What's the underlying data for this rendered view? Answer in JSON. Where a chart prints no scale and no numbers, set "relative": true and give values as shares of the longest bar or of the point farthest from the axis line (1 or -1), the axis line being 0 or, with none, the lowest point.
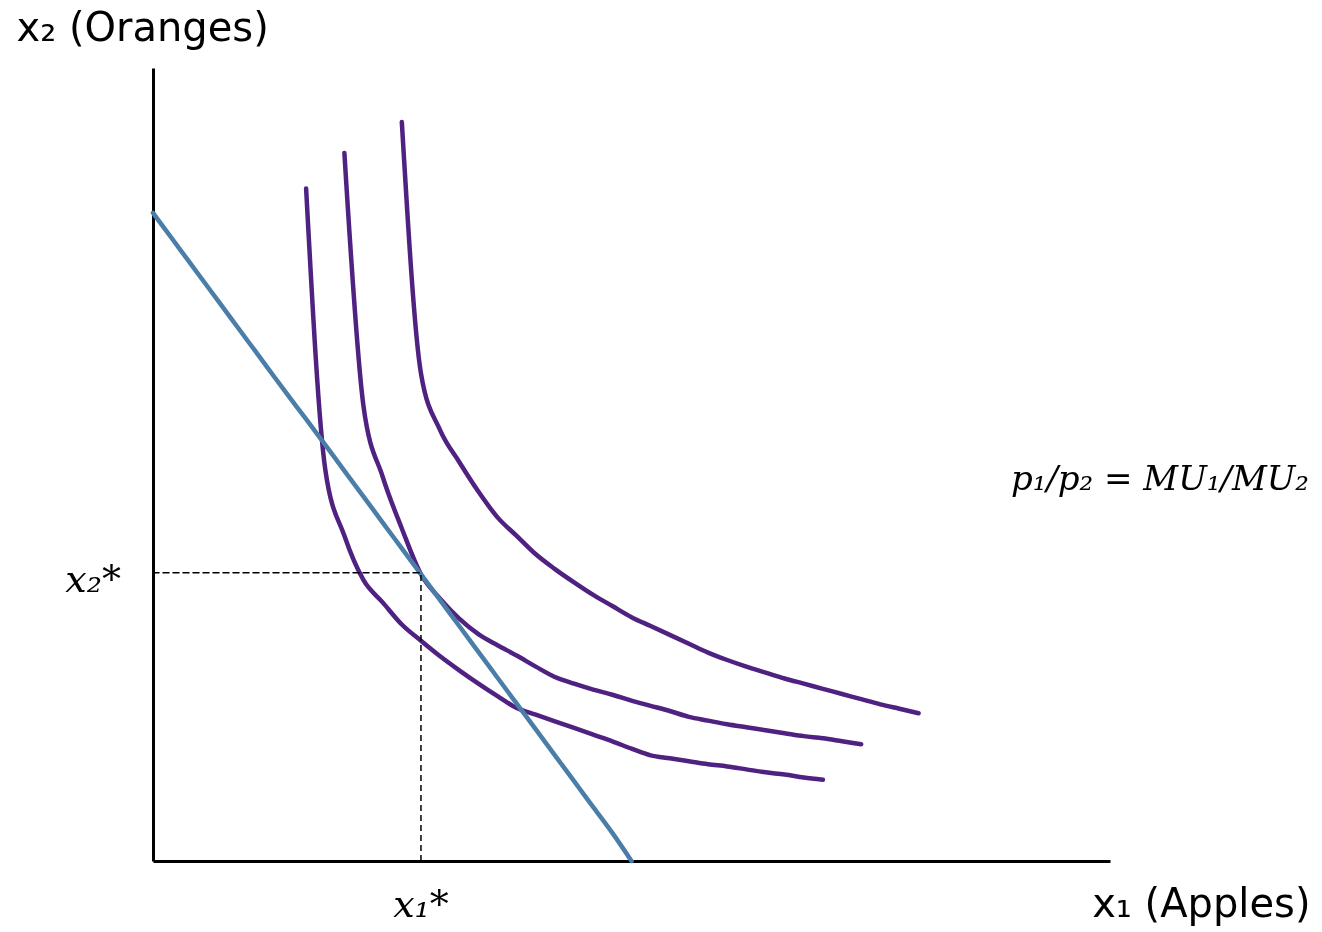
{
  "chart_data": {
    "type": "line",
    "relative": true,
    "xlabel": "x₁ (Apples)",
    "ylabel": "x₂ (Oranges)",
    "categories": [
      null,
      null,
      null,
      null,
      null,
      null,
      null,
      null,
      null,
      null,
      null,
      null,
      null,
      null,
      null,
      null,
      null,
      null,
      null,
      null,
      null,
      null,
      null,
      null,
      null,
      null,
      null,
      null,
      null,
      null,
      null,
      null,
      null,
      null,
      null,
      null,
      null,
      null,
      null,
      null,
      null,
      null,
      null,
      null,
      null,
      null,
      null,
      null,
      null,
      null,
      null
    ],
    "series": [
      {
        "color": "#4f2180",
        "values": [
          null,
          null,
          null,
          null,
          null,
          null,
          null,
          null,
          0.91,
          0.53,
          0.44,
          0.38,
          0.35,
          0.32,
          0.298,
          0.277,
          0.258,
          0.24,
          0.223,
          0.207,
          0.198,
          0.189,
          0.18,
          0.171,
          0.162,
          0.152,
          0.143,
          0.139,
          0.135,
          0.131,
          0.128,
          0.124,
          0.12,
          0.117,
          0.113,
          0.11,
          null,
          null,
          null,
          null,
          null,
          null,
          null,
          null,
          null,
          null,
          null,
          null,
          null,
          null,
          null
        ]
      },
      {
        "color": "#4f2180",
        "values": [
          null,
          null,
          null,
          null,
          null,
          null,
          null,
          null,
          null,
          null,
          0.958,
          0.615,
          0.52,
          0.45,
          0.388,
          0.355,
          0.328,
          0.307,
          0.292,
          0.278,
          0.263,
          0.249,
          0.24,
          0.232,
          0.225,
          0.217,
          0.21,
          0.203,
          0.195,
          0.19,
          0.185,
          0.181,
          0.177,
          0.173,
          0.169,
          0.166,
          0.162,
          0.158,
          null,
          null,
          null,
          null,
          null,
          null,
          null,
          null,
          null,
          null,
          null,
          null,
          null
        ]
      },
      {
        "color": "#4f2180",
        "values": [
          null,
          null,
          null,
          null,
          null,
          null,
          null,
          null,
          null,
          null,
          null,
          null,
          null,
          1,
          0.66,
          0.583,
          0.54,
          0.5,
          0.465,
          0.44,
          0.415,
          0.395,
          0.377,
          0.36,
          0.345,
          0.33,
          0.318,
          0.306,
          0.294,
          0.282,
          0.272,
          0.263,
          0.255,
          0.247,
          0.24,
          0.233,
          0.226,
          0.219,
          0.212,
          0.206,
          0.2,
          null,
          null,
          null,
          null,
          null,
          null,
          null,
          null,
          null,
          null
        ]
      },
      {
        "color": "#4a7ea8",
        "values": [
          0.877,
          0.842,
          0.807,
          0.772,
          0.737,
          0.702,
          0.667,
          0.632,
          0.598,
          0.563,
          0.528,
          0.493,
          0.458,
          0.423,
          0.388,
          0.353,
          0.318,
          0.283,
          0.248,
          0.213,
          0.178,
          0.143,
          0.108,
          0.073,
          0.038,
          0,
          null,
          null,
          null,
          null,
          null,
          null,
          null,
          null,
          null,
          null,
          null,
          null,
          null,
          null,
          null,
          null,
          null,
          null,
          null,
          null,
          null,
          null,
          null,
          null,
          null
        ]
      },
      {
        "color": "#000000",
        "line_style": "dashed",
        "values": [
          0.39,
          0.39,
          0.39,
          0.39,
          0.39,
          0.39,
          0.39,
          0.39,
          0.39,
          0.39,
          0.39,
          0.39,
          0.39,
          0.39,
          0.39,
          null,
          null,
          null,
          null,
          null,
          null,
          null,
          null,
          null,
          null,
          null,
          null,
          null,
          null,
          null,
          null,
          null,
          null,
          null,
          null,
          null,
          null,
          null,
          null,
          null,
          null,
          null,
          null,
          null,
          null,
          null,
          null,
          null,
          null,
          null,
          null
        ]
      }
    ],
    "annotations": [
      "x₁*",
      "x₂*",
      "p₁/p₂ = MU₁/MU₂"
    ]
  }
}
